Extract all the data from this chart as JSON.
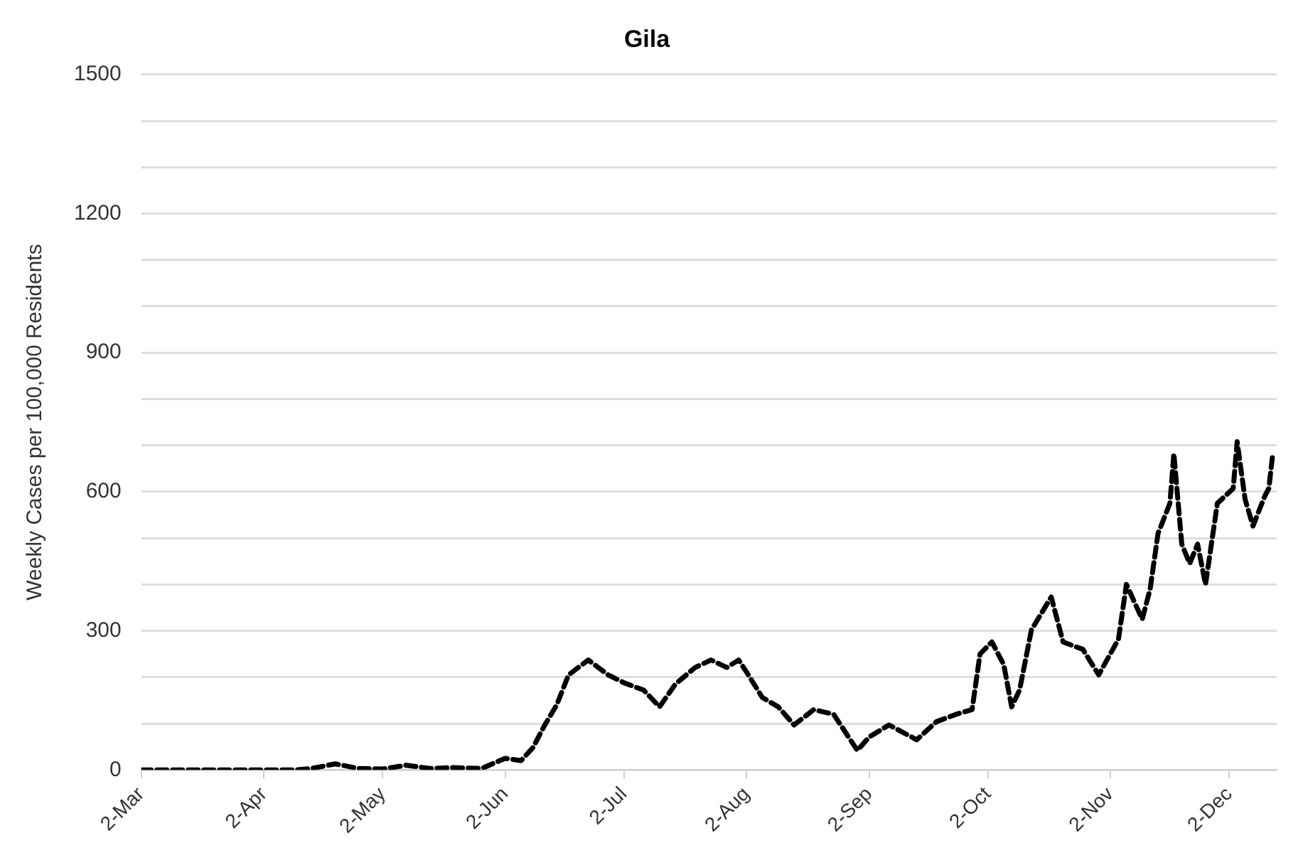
{
  "chart_data": {
    "type": "line",
    "title": "Gila",
    "ylabel": "Weekly Cases per 100,000 Residents",
    "x": [
      "--03-02",
      "--03-20",
      "--04-10",
      "--04-14",
      "--04-20",
      "--04-26",
      "--05-02",
      "--05-08",
      "--05-14",
      "--05-20",
      "--05-27",
      "--06-02",
      "--06-06",
      "--06-09",
      "--06-12",
      "--06-15",
      "--06-18",
      "--06-23",
      "--06-28",
      "--07-02",
      "--07-07",
      "--07-11",
      "--07-15",
      "--07-20",
      "--07-24",
      "--07-28",
      "--07-31",
      "--08-02",
      "--08-06",
      "--08-10",
      "--08-14",
      "--08-19",
      "--08-24",
      "--08-30",
      "--09-02",
      "--09-07",
      "--09-14",
      "--09-19",
      "--09-24",
      "--09-28",
      "--09-30",
      "--10-03",
      "--10-06",
      "--10-08",
      "--10-10",
      "--10-13",
      "--10-18",
      "--10-21",
      "--10-26",
      "--10-30",
      "--11-04",
      "--11-06",
      "--11-10",
      "--11-12",
      "--11-14",
      "--11-17",
      "--11-18",
      "--11-20",
      "--11-22",
      "--11-24",
      "--11-26",
      "--11-29",
      "--12-03",
      "--12-04",
      "--12-06",
      "--12-08",
      "--12-11",
      "--12-12",
      "--12-13"
    ],
    "series": [
      {
        "color": "#000000",
        "line_style": "dashed",
        "values": [
          0,
          0,
          0,
          3,
          13,
          3,
          2,
          10,
          3,
          5,
          3,
          25,
          20,
          48,
          97,
          140,
          205,
          237,
          205,
          188,
          172,
          136,
          185,
          221,
          237,
          221,
          237,
          211,
          156,
          136,
          97,
          130,
          120,
          42,
          71,
          97,
          65,
          104,
          120,
          130,
          250,
          276,
          227,
          136,
          172,
          302,
          373,
          276,
          260,
          205,
          282,
          400,
          325,
          390,
          510,
          575,
          682,
          487,
          445,
          487,
          400,
          575,
          607,
          708,
          584,
          526,
          591,
          607,
          682
        ]
      }
    ],
    "xlim": [
      "--03-02",
      "--12-14"
    ],
    "xticks": [
      {
        "value": "--03-02",
        "label": "2-Mar"
      },
      {
        "value": "--04-02",
        "label": "2-Apr"
      },
      {
        "value": "--05-02",
        "label": "2-May"
      },
      {
        "value": "--06-02",
        "label": "2-Jun"
      },
      {
        "value": "--07-02",
        "label": "2-Jul"
      },
      {
        "value": "--08-02",
        "label": "2-Aug"
      },
      {
        "value": "--09-02",
        "label": "2-Sep"
      },
      {
        "value": "--10-02",
        "label": "2-Oct"
      },
      {
        "value": "--11-02",
        "label": "2-Nov"
      },
      {
        "value": "--12-02",
        "label": "2-Dec"
      }
    ],
    "ylim": [
      0,
      1500
    ],
    "yticks": [
      0,
      {
        "value": 100,
        "label": null
      },
      {
        "value": 200,
        "label": null
      },
      300,
      {
        "value": 400,
        "label": null
      },
      {
        "value": 500,
        "label": null
      },
      600,
      {
        "value": 700,
        "label": null
      },
      {
        "value": 800,
        "label": null
      },
      900,
      {
        "value": 1000,
        "label": null
      },
      {
        "value": 1100,
        "label": null
      },
      1200,
      {
        "value": 1300,
        "label": null
      },
      {
        "value": 1400,
        "label": null
      },
      1500
    ],
    "grid": "y",
    "legend": false
  }
}
